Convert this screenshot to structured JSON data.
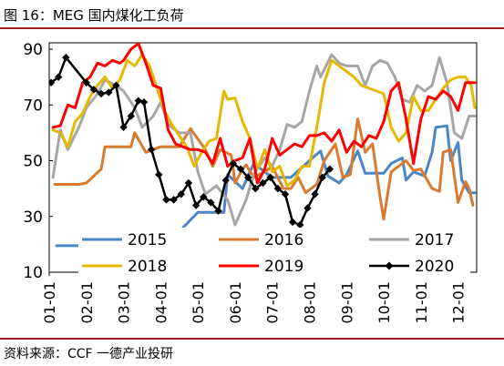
{
  "header": {
    "title": "图 16：MEG 国内煤化工负荷"
  },
  "footer": {
    "source": "资料来源：CCF 一德产业投研"
  },
  "chart_data": {
    "type": "line",
    "title": "图 16：MEG 国内煤化工负荷",
    "xlabel": "",
    "ylabel": "",
    "x_categories": [
      "01-01",
      "02-01",
      "03-01",
      "04-01",
      "05-01",
      "06-01",
      "07-01",
      "08-01",
      "09-01",
      "10-01",
      "11-01",
      "12-01"
    ],
    "x_start": 0,
    "x_end": 11.5,
    "yticks": [
      10,
      30,
      50,
      70,
      90
    ],
    "ylim": [
      10,
      92
    ],
    "grid": false,
    "legend_position": "bottom",
    "series": [
      {
        "name": "2015",
        "color": "#4a86c6",
        "markers": false,
        "points": [
          [
            0.2,
            19.5
          ],
          [
            1.0,
            19.5
          ],
          [
            1.0,
            25.5
          ],
          [
            1.8,
            25.5
          ],
          [
            1.8,
            22.0
          ],
          [
            3.6,
            22.0
          ],
          [
            3.6,
            26.0
          ],
          [
            4.0,
            31.5
          ],
          [
            4.7,
            31.5
          ],
          [
            4.8,
            45.0
          ],
          [
            5.2,
            40.0
          ],
          [
            5.5,
            49.0
          ],
          [
            6.0,
            44.0
          ],
          [
            6.5,
            44.0
          ],
          [
            7.0,
            50.0
          ],
          [
            7.3,
            53.5
          ],
          [
            7.5,
            44.5
          ],
          [
            7.8,
            42.0
          ],
          [
            8.0,
            45.0
          ],
          [
            8.3,
            53.5
          ],
          [
            8.5,
            45.5
          ],
          [
            9.0,
            45.5
          ],
          [
            9.2,
            49.0
          ],
          [
            9.5,
            51.0
          ],
          [
            9.6,
            43.0
          ],
          [
            9.8,
            46.0
          ],
          [
            10.1,
            44.5
          ],
          [
            10.3,
            53.0
          ],
          [
            10.4,
            62.0
          ],
          [
            10.7,
            62.5
          ],
          [
            10.8,
            50.0
          ],
          [
            11.0,
            56.5
          ],
          [
            11.1,
            43.0
          ],
          [
            11.3,
            38.5
          ],
          [
            11.45,
            38.5
          ]
        ]
      },
      {
        "name": "2016",
        "color": "#d97a2e",
        "markers": false,
        "points": [
          [
            0.15,
            41.5
          ],
          [
            0.8,
            41.5
          ],
          [
            1.0,
            42.0
          ],
          [
            1.4,
            47.0
          ],
          [
            1.5,
            55.0
          ],
          [
            2.2,
            55.0
          ],
          [
            2.3,
            60.0
          ],
          [
            2.6,
            53.0
          ],
          [
            3.0,
            55.0
          ],
          [
            3.5,
            55.0
          ],
          [
            3.8,
            61.5
          ],
          [
            4.2,
            54.0
          ],
          [
            4.4,
            48.0
          ],
          [
            4.6,
            54.0
          ],
          [
            4.9,
            52.0
          ],
          [
            5.0,
            42.0
          ],
          [
            5.2,
            47.0
          ],
          [
            5.3,
            48.5
          ],
          [
            5.5,
            44.0
          ],
          [
            5.8,
            46.0
          ],
          [
            6.0,
            48.0
          ],
          [
            6.3,
            40.0
          ],
          [
            6.5,
            40.0
          ],
          [
            6.7,
            44.0
          ],
          [
            6.9,
            38.5
          ],
          [
            7.2,
            41.5
          ],
          [
            7.4,
            50.0
          ],
          [
            7.7,
            56.0
          ],
          [
            7.9,
            44.0
          ],
          [
            8.1,
            45.0
          ],
          [
            8.3,
            65.0
          ],
          [
            8.5,
            53.0
          ],
          [
            8.7,
            56.0
          ],
          [
            8.9,
            37.0
          ],
          [
            9.0,
            29.0
          ],
          [
            9.2,
            46.0
          ],
          [
            9.4,
            48.0
          ],
          [
            9.6,
            50.0
          ],
          [
            9.8,
            46.5
          ],
          [
            10.0,
            47.0
          ],
          [
            10.3,
            40.0
          ],
          [
            10.5,
            39.0
          ],
          [
            10.6,
            53.0
          ],
          [
            10.8,
            54.0
          ],
          [
            11.0,
            35.0
          ],
          [
            11.2,
            42.5
          ],
          [
            11.3,
            40.0
          ],
          [
            11.4,
            34.0
          ]
        ]
      },
      {
        "name": "2017",
        "color": "#a6a6a6",
        "markers": false,
        "points": [
          [
            0.1,
            44.0
          ],
          [
            0.3,
            61.0
          ],
          [
            0.5,
            54.0
          ],
          [
            0.8,
            62.0
          ],
          [
            1.0,
            69.0
          ],
          [
            1.3,
            74.0
          ],
          [
            1.5,
            79.0
          ],
          [
            1.8,
            77.0
          ],
          [
            2.0,
            75.0
          ],
          [
            2.3,
            69.0
          ],
          [
            2.5,
            62.0
          ],
          [
            2.8,
            66.0
          ],
          [
            3.0,
            71.0
          ],
          [
            3.2,
            63.0
          ],
          [
            3.5,
            60.0
          ],
          [
            3.8,
            60.0
          ],
          [
            4.0,
            46.0
          ],
          [
            4.2,
            38.0
          ],
          [
            4.5,
            41.0
          ],
          [
            4.8,
            36.0
          ],
          [
            5.0,
            27.0
          ],
          [
            5.3,
            36.0
          ],
          [
            5.5,
            45.0
          ],
          [
            5.8,
            51.0
          ],
          [
            6.0,
            48.0
          ],
          [
            6.2,
            54.0
          ],
          [
            6.4,
            63.0
          ],
          [
            6.6,
            62.0
          ],
          [
            6.8,
            64.0
          ],
          [
            7.0,
            75.0
          ],
          [
            7.2,
            84.0
          ],
          [
            7.3,
            80.0
          ],
          [
            7.6,
            88.0
          ],
          [
            7.8,
            85.0
          ],
          [
            8.0,
            84.0
          ],
          [
            8.3,
            84.0
          ],
          [
            8.5,
            77.0
          ],
          [
            8.7,
            84.0
          ],
          [
            8.9,
            86.0
          ],
          [
            9.1,
            85.0
          ],
          [
            9.3,
            80.0
          ],
          [
            9.5,
            72.0
          ],
          [
            9.7,
            71.0
          ],
          [
            9.9,
            77.0
          ],
          [
            10.1,
            75.0
          ],
          [
            10.3,
            77.0
          ],
          [
            10.5,
            87.0
          ],
          [
            10.7,
            78.0
          ],
          [
            10.9,
            60.0
          ],
          [
            11.1,
            58.0
          ],
          [
            11.3,
            66.0
          ],
          [
            11.45,
            66.0
          ]
        ]
      },
      {
        "name": "2018",
        "color": "#e6b800",
        "markers": false,
        "points": [
          [
            0.1,
            61.0
          ],
          [
            0.3,
            60.0
          ],
          [
            0.5,
            55.0
          ],
          [
            0.7,
            64.0
          ],
          [
            0.9,
            67.0
          ],
          [
            1.1,
            73.0
          ],
          [
            1.3,
            77.0
          ],
          [
            1.5,
            80.0
          ],
          [
            1.7,
            76.0
          ],
          [
            1.9,
            79.0
          ],
          [
            2.1,
            86.0
          ],
          [
            2.3,
            84.0
          ],
          [
            2.5,
            88.0
          ],
          [
            2.7,
            84.0
          ],
          [
            2.9,
            76.0
          ],
          [
            3.1,
            68.0
          ],
          [
            3.3,
            63.0
          ],
          [
            3.5,
            59.0
          ],
          [
            3.7,
            55.0
          ],
          [
            3.9,
            48.0
          ],
          [
            4.1,
            53.0
          ],
          [
            4.3,
            57.0
          ],
          [
            4.5,
            58.0
          ],
          [
            4.7,
            75.0
          ],
          [
            4.8,
            72.0
          ],
          [
            5.0,
            72.5
          ],
          [
            5.2,
            64.0
          ],
          [
            5.4,
            58.0
          ],
          [
            5.6,
            47.0
          ],
          [
            5.8,
            54.0
          ],
          [
            6.0,
            46.0
          ],
          [
            6.2,
            48.0
          ],
          [
            6.4,
            41.0
          ],
          [
            6.6,
            43.0
          ],
          [
            6.8,
            48.0
          ],
          [
            7.0,
            48.0
          ],
          [
            7.2,
            62.0
          ],
          [
            7.4,
            78.0
          ],
          [
            7.6,
            86.0
          ],
          [
            7.8,
            84.0
          ],
          [
            8.0,
            82.0
          ],
          [
            8.2,
            80.0
          ],
          [
            8.4,
            77.0
          ],
          [
            8.6,
            76.0
          ],
          [
            8.8,
            75.0
          ],
          [
            9.0,
            74.0
          ],
          [
            9.2,
            62.0
          ],
          [
            9.4,
            57.0
          ],
          [
            9.6,
            60.0
          ],
          [
            9.8,
            73.0
          ],
          [
            10.0,
            68.0
          ],
          [
            10.2,
            68.0
          ],
          [
            10.4,
            72.0
          ],
          [
            10.6,
            76.0
          ],
          [
            10.8,
            79.0
          ],
          [
            11.0,
            80.0
          ],
          [
            11.2,
            80.0
          ],
          [
            11.35,
            77.0
          ],
          [
            11.45,
            69.0
          ]
        ]
      },
      {
        "name": "2019",
        "color": "#ff0000",
        "markers": false,
        "points": [
          [
            0.1,
            62.0
          ],
          [
            0.3,
            62.5
          ],
          [
            0.5,
            70.0
          ],
          [
            0.7,
            69.0
          ],
          [
            0.9,
            78.0
          ],
          [
            1.1,
            80.0
          ],
          [
            1.3,
            85.0
          ],
          [
            1.5,
            84.0
          ],
          [
            1.7,
            86.0
          ],
          [
            1.9,
            85.0
          ],
          [
            2.0,
            86.0
          ],
          [
            2.2,
            90.0
          ],
          [
            2.4,
            92.0
          ],
          [
            2.6,
            85.0
          ],
          [
            2.8,
            77.0
          ],
          [
            3.0,
            76.0
          ],
          [
            3.2,
            61.0
          ],
          [
            3.4,
            56.0
          ],
          [
            3.6,
            55.0
          ],
          [
            3.8,
            54.0
          ],
          [
            4.0,
            54.0
          ],
          [
            4.2,
            53.0
          ],
          [
            4.4,
            49.0
          ],
          [
            4.6,
            58.0
          ],
          [
            4.8,
            48.0
          ],
          [
            5.0,
            50.0
          ],
          [
            5.2,
            51.0
          ],
          [
            5.4,
            58.0
          ],
          [
            5.6,
            42.0
          ],
          [
            5.8,
            47.0
          ],
          [
            6.0,
            58.0
          ],
          [
            6.2,
            52.0
          ],
          [
            6.4,
            54.0
          ],
          [
            6.6,
            56.0
          ],
          [
            6.8,
            55.0
          ],
          [
            7.0,
            59.0
          ],
          [
            7.2,
            59.0
          ],
          [
            7.4,
            60.0
          ],
          [
            7.6,
            57.0
          ],
          [
            7.8,
            61.0
          ],
          [
            8.0,
            53.0
          ],
          [
            8.2,
            57.0
          ],
          [
            8.4,
            55.0
          ],
          [
            8.6,
            59.0
          ],
          [
            8.8,
            58.0
          ],
          [
            9.0,
            64.0
          ],
          [
            9.2,
            75.0
          ],
          [
            9.4,
            78.0
          ],
          [
            9.6,
            65.0
          ],
          [
            9.8,
            49.0
          ],
          [
            10.0,
            65.0
          ],
          [
            10.2,
            73.0
          ],
          [
            10.4,
            72.0
          ],
          [
            10.6,
            75.0
          ],
          [
            10.8,
            73.0
          ],
          [
            11.0,
            68.0
          ],
          [
            11.2,
            78.0
          ],
          [
            11.35,
            78.0
          ],
          [
            11.45,
            78.0
          ]
        ]
      },
      {
        "name": "2020",
        "color": "#000000",
        "markers": true,
        "points": [
          [
            0.05,
            78.0
          ],
          [
            0.25,
            80.0
          ],
          [
            0.45,
            87.0
          ],
          [
            1.0,
            78.0
          ],
          [
            1.2,
            75.5
          ],
          [
            1.4,
            74.0
          ],
          [
            1.6,
            74.5
          ],
          [
            1.8,
            77.0
          ],
          [
            2.0,
            62.0
          ],
          [
            2.2,
            66.0
          ],
          [
            2.4,
            71.5
          ],
          [
            2.55,
            71.0
          ],
          [
            2.75,
            54.0
          ],
          [
            2.95,
            45.0
          ],
          [
            3.15,
            36.0
          ],
          [
            3.35,
            36.0
          ],
          [
            3.55,
            38.0
          ],
          [
            3.75,
            42.0
          ],
          [
            3.95,
            34.0
          ],
          [
            4.15,
            37.0
          ],
          [
            4.35,
            35.0
          ],
          [
            4.55,
            32.0
          ],
          [
            4.75,
            43.0
          ],
          [
            4.95,
            49.0
          ],
          [
            5.15,
            47.0
          ],
          [
            5.35,
            44.0
          ],
          [
            5.55,
            40.0
          ],
          [
            5.75,
            42.0
          ],
          [
            5.95,
            44.0
          ],
          [
            6.15,
            40.0
          ],
          [
            6.35,
            38.0
          ],
          [
            6.55,
            28.0
          ],
          [
            6.75,
            27.0
          ],
          [
            6.95,
            33.0
          ],
          [
            7.15,
            38.0
          ],
          [
            7.35,
            44.0
          ],
          [
            7.55,
            47.0
          ]
        ]
      }
    ]
  }
}
